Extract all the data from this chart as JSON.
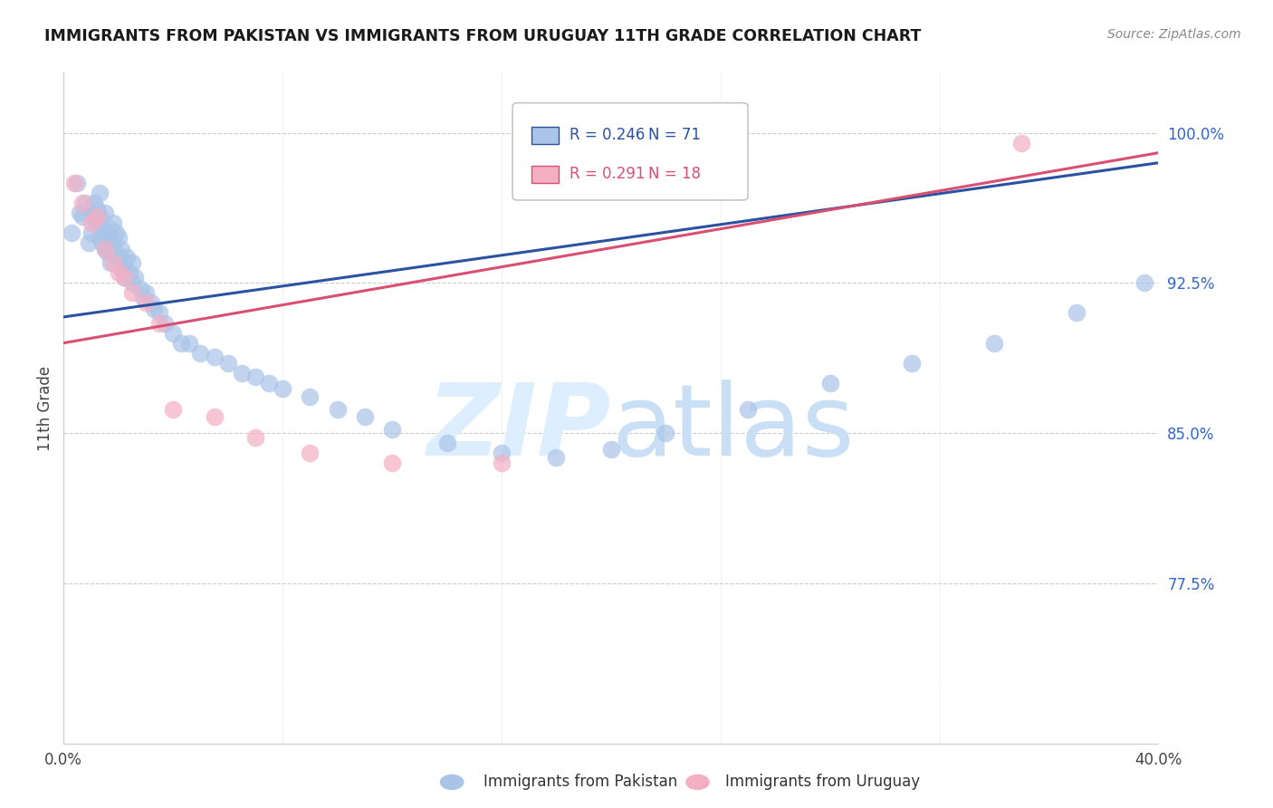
{
  "title": "IMMIGRANTS FROM PAKISTAN VS IMMIGRANTS FROM URUGUAY 11TH GRADE CORRELATION CHART",
  "source": "Source: ZipAtlas.com",
  "ylabel": "11th Grade",
  "xlim": [
    0.0,
    0.4
  ],
  "ylim": [
    0.695,
    1.03
  ],
  "yticks": [
    0.775,
    0.85,
    0.925,
    1.0
  ],
  "ytick_labels": [
    "77.5%",
    "85.0%",
    "92.5%",
    "100.0%"
  ],
  "xticks": [
    0.0,
    0.08,
    0.16,
    0.24,
    0.32,
    0.4
  ],
  "xtick_labels": [
    "0.0%",
    "",
    "",
    "",
    "",
    "40.0%"
  ],
  "legend_r_pakistan": "R = 0.246",
  "legend_n_pakistan": "N = 71",
  "legend_r_uruguay": "R = 0.291",
  "legend_n_uruguay": "N = 18",
  "pakistan_color": "#aac4e8",
  "uruguay_color": "#f4afc4",
  "pakistan_line_color": "#2a52a0",
  "uruguay_line_color": "#d94f72",
  "pakistan_label": "Immigrants from Pakistan",
  "uruguay_label": "Immigrants from Uruguay",
  "background_color": "#ffffff",
  "grid_color": "#cccccc",
  "watermark_color": "#ddeeff",
  "pakistan_x": [
    0.003,
    0.005,
    0.006,
    0.007,
    0.008,
    0.009,
    0.01,
    0.01,
    0.011,
    0.011,
    0.012,
    0.012,
    0.013,
    0.013,
    0.013,
    0.014,
    0.014,
    0.015,
    0.015,
    0.015,
    0.016,
    0.016,
    0.017,
    0.017,
    0.018,
    0.018,
    0.019,
    0.019,
    0.02,
    0.02,
    0.021,
    0.021,
    0.022,
    0.022,
    0.023,
    0.024,
    0.025,
    0.025,
    0.026,
    0.028,
    0.029,
    0.03,
    0.032,
    0.033,
    0.035,
    0.037,
    0.04,
    0.043,
    0.046,
    0.05,
    0.055,
    0.06,
    0.065,
    0.07,
    0.075,
    0.08,
    0.09,
    0.1,
    0.11,
    0.12,
    0.14,
    0.16,
    0.18,
    0.2,
    0.22,
    0.25,
    0.28,
    0.31,
    0.34,
    0.37,
    0.395
  ],
  "pakistan_y": [
    0.95,
    0.975,
    0.96,
    0.958,
    0.965,
    0.945,
    0.96,
    0.95,
    0.958,
    0.965,
    0.955,
    0.962,
    0.948,
    0.958,
    0.97,
    0.952,
    0.945,
    0.942,
    0.95,
    0.96,
    0.94,
    0.948,
    0.952,
    0.935,
    0.945,
    0.955,
    0.94,
    0.95,
    0.938,
    0.948,
    0.932,
    0.942,
    0.935,
    0.928,
    0.938,
    0.93,
    0.925,
    0.935,
    0.928,
    0.922,
    0.918,
    0.92,
    0.915,
    0.912,
    0.91,
    0.905,
    0.9,
    0.895,
    0.895,
    0.89,
    0.888,
    0.885,
    0.88,
    0.878,
    0.875,
    0.872,
    0.868,
    0.862,
    0.858,
    0.852,
    0.845,
    0.84,
    0.838,
    0.842,
    0.85,
    0.862,
    0.875,
    0.885,
    0.895,
    0.91,
    0.925
  ],
  "uruguay_x": [
    0.004,
    0.007,
    0.01,
    0.012,
    0.015,
    0.018,
    0.02,
    0.022,
    0.025,
    0.03,
    0.035,
    0.04,
    0.055,
    0.07,
    0.09,
    0.12,
    0.16,
    0.35
  ],
  "uruguay_y": [
    0.975,
    0.965,
    0.955,
    0.958,
    0.942,
    0.935,
    0.93,
    0.928,
    0.92,
    0.915,
    0.905,
    0.862,
    0.858,
    0.848,
    0.84,
    0.835,
    0.835,
    0.995
  ],
  "pk_line_x": [
    0.0,
    0.4
  ],
  "pk_line_y": [
    0.908,
    0.985
  ],
  "ur_line_x": [
    0.0,
    0.4
  ],
  "ur_line_y": [
    0.895,
    0.99
  ]
}
